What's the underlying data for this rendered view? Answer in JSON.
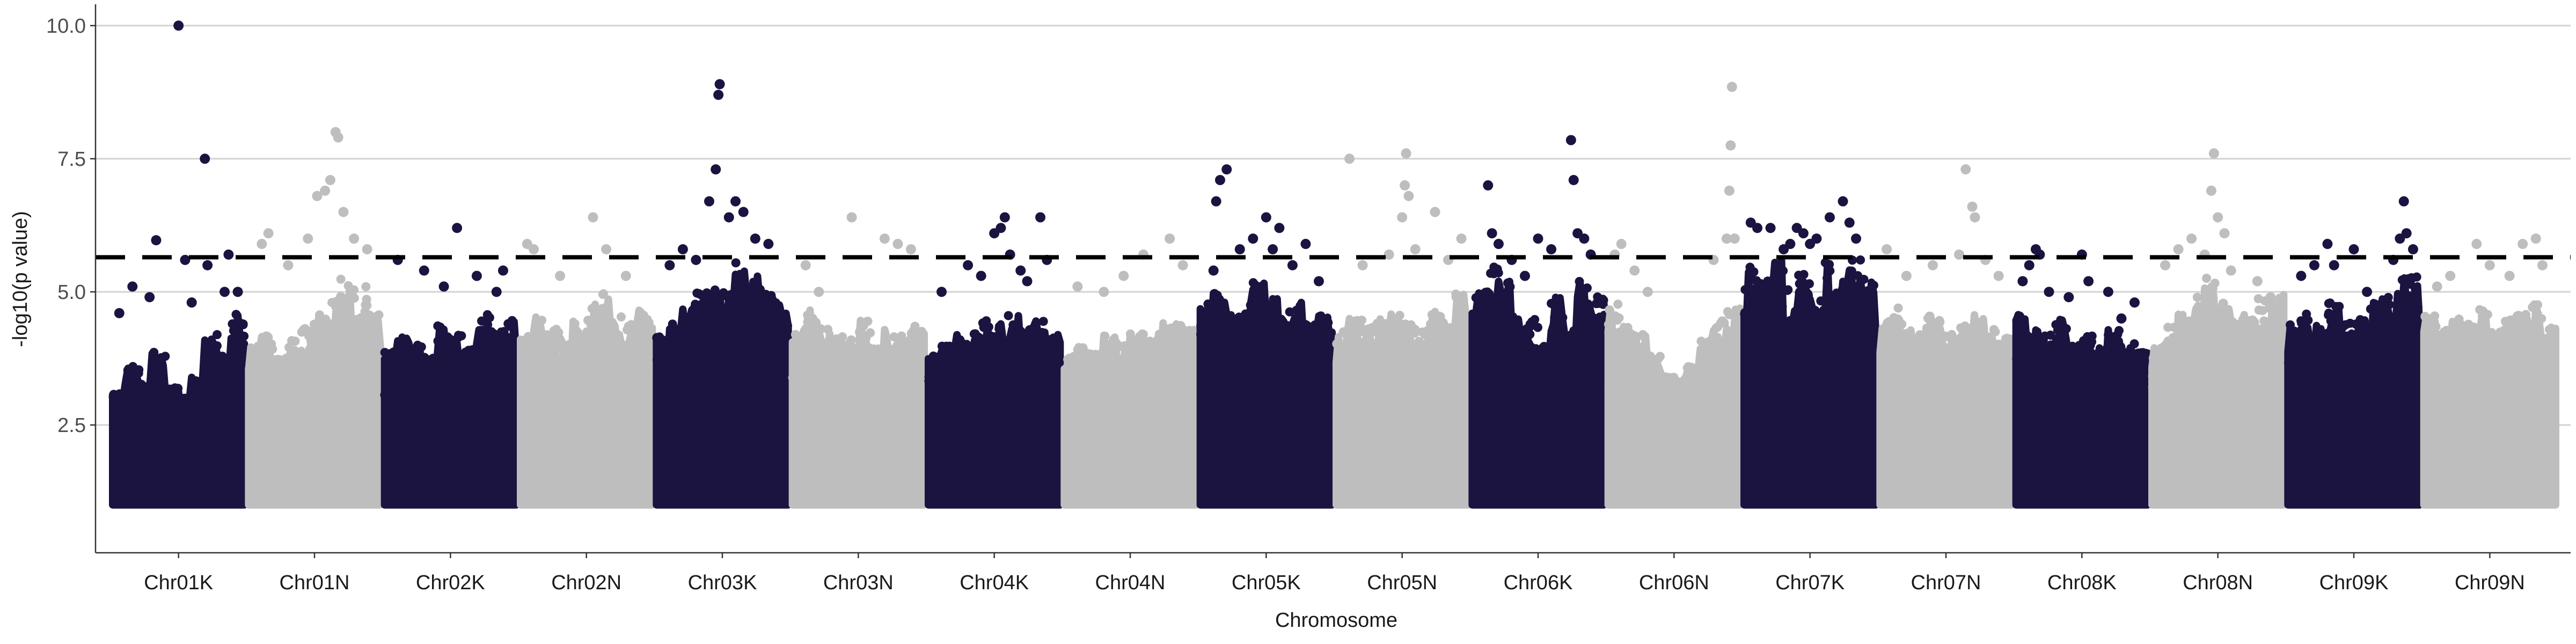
{
  "chart_data": {
    "type": "scatter",
    "subtype": "manhattan",
    "title": "",
    "xlabel": "Chromosome",
    "ylabel": "-log10(p value)",
    "ylim": [
      0.1,
      10.3
    ],
    "yticks": [
      2.5,
      5.0,
      7.5,
      10.0
    ],
    "ytick_labels": [
      "2.5",
      "5.0",
      "7.5",
      "10.0"
    ],
    "grid": "horizontal major lines only",
    "legend": "none",
    "threshold": {
      "value": 5.65,
      "style": "dashed",
      "color": "#000000"
    },
    "point_colors": [
      "#1b1340",
      "#bebebe"
    ],
    "point_floor": 1.0,
    "categories": [
      "Chr01K",
      "Chr01N",
      "Chr02K",
      "Chr02N",
      "Chr03K",
      "Chr03N",
      "Chr04K",
      "Chr04N",
      "Chr05K",
      "Chr05N",
      "Chr06K",
      "Chr06N",
      "Chr07K",
      "Chr07N",
      "Chr08K",
      "Chr08N",
      "Chr09K",
      "Chr09N"
    ],
    "series": [
      {
        "category": "Chr01K",
        "color": "#1b1340",
        "band_top": [
          3.1,
          3.6,
          3.3,
          3.9,
          3.2,
          3.0,
          3.4,
          4.2,
          3.8,
          4.6
        ],
        "peaks": [
          [
            0.05,
            4.6
          ],
          [
            0.15,
            5.1
          ],
          [
            0.28,
            4.9
          ],
          [
            0.33,
            5.97
          ],
          [
            0.5,
            10.0
          ],
          [
            0.55,
            5.6
          ],
          [
            0.6,
            4.8
          ],
          [
            0.7,
            7.5
          ],
          [
            0.72,
            5.5
          ],
          [
            0.85,
            5.0
          ],
          [
            0.88,
            5.7
          ],
          [
            0.95,
            5.0
          ]
        ]
      },
      {
        "category": "Chr01N",
        "color": "#bebebe",
        "band_top": [
          4.0,
          4.3,
          3.8,
          4.1,
          4.4,
          4.6,
          5.0,
          5.3,
          5.1,
          4.6
        ],
        "peaks": [
          [
            0.1,
            5.9
          ],
          [
            0.15,
            6.1
          ],
          [
            0.3,
            5.5
          ],
          [
            0.45,
            6.0
          ],
          [
            0.52,
            6.8
          ],
          [
            0.58,
            6.9
          ],
          [
            0.62,
            7.1
          ],
          [
            0.66,
            8.0
          ],
          [
            0.68,
            7.9
          ],
          [
            0.72,
            6.5
          ],
          [
            0.8,
            6.0
          ],
          [
            0.9,
            5.8
          ]
        ]
      },
      {
        "category": "Chr02K",
        "color": "#1b1340",
        "band_top": [
          3.9,
          4.2,
          4.0,
          3.8,
          4.4,
          4.2,
          4.0,
          4.6,
          4.3,
          4.5
        ],
        "peaks": [
          [
            0.1,
            5.6
          ],
          [
            0.3,
            5.4
          ],
          [
            0.45,
            5.1
          ],
          [
            0.55,
            6.2
          ],
          [
            0.7,
            5.3
          ],
          [
            0.85,
            5.0
          ],
          [
            0.9,
            5.4
          ]
        ]
      },
      {
        "category": "Chr02N",
        "color": "#bebebe",
        "band_top": [
          4.2,
          4.6,
          4.3,
          4.1,
          4.5,
          4.8,
          5.0,
          4.6,
          4.4,
          4.7
        ],
        "peaks": [
          [
            0.05,
            5.9
          ],
          [
            0.1,
            5.8
          ],
          [
            0.3,
            5.3
          ],
          [
            0.55,
            6.4
          ],
          [
            0.65,
            5.8
          ],
          [
            0.8,
            5.3
          ]
        ]
      },
      {
        "category": "Chr03K",
        "color": "#1b1340",
        "band_top": [
          4.2,
          4.5,
          4.8,
          5.0,
          5.2,
          5.0,
          5.6,
          5.3,
          5.0,
          4.8
        ],
        "peaks": [
          [
            0.1,
            5.5
          ],
          [
            0.2,
            5.8
          ],
          [
            0.3,
            5.6
          ],
          [
            0.4,
            6.7
          ],
          [
            0.45,
            7.3
          ],
          [
            0.47,
            8.7
          ],
          [
            0.48,
            8.9
          ],
          [
            0.55,
            6.4
          ],
          [
            0.6,
            6.7
          ],
          [
            0.66,
            6.5
          ],
          [
            0.75,
            6.0
          ],
          [
            0.85,
            5.9
          ]
        ]
      },
      {
        "category": "Chr03N",
        "color": "#bebebe",
        "band_top": [
          4.3,
          4.7,
          4.4,
          4.2,
          4.1,
          4.5,
          4.0,
          4.3,
          4.2,
          4.4
        ],
        "peaks": [
          [
            0.1,
            5.5
          ],
          [
            0.2,
            5.0
          ],
          [
            0.45,
            6.4
          ],
          [
            0.7,
            6.0
          ],
          [
            0.8,
            5.9
          ],
          [
            0.9,
            5.8
          ]
        ]
      },
      {
        "category": "Chr04K",
        "color": "#1b1340",
        "band_top": [
          3.8,
          4.0,
          4.2,
          4.3,
          4.5,
          4.4,
          4.6,
          4.3,
          4.5,
          4.2
        ],
        "peaks": [
          [
            0.1,
            5.0
          ],
          [
            0.3,
            5.5
          ],
          [
            0.4,
            5.3
          ],
          [
            0.5,
            6.1
          ],
          [
            0.55,
            6.2
          ],
          [
            0.58,
            6.4
          ],
          [
            0.62,
            5.7
          ],
          [
            0.7,
            5.4
          ],
          [
            0.75,
            5.2
          ],
          [
            0.85,
            6.4
          ],
          [
            0.9,
            5.6
          ]
        ]
      },
      {
        "category": "Chr04N",
        "color": "#bebebe",
        "band_top": [
          3.8,
          4.0,
          3.9,
          4.2,
          4.0,
          4.3,
          4.1,
          4.5,
          4.4,
          4.3
        ],
        "peaks": [
          [
            0.1,
            5.1
          ],
          [
            0.3,
            5.0
          ],
          [
            0.45,
            5.3
          ],
          [
            0.6,
            5.7
          ],
          [
            0.8,
            6.0
          ],
          [
            0.9,
            5.5
          ]
        ]
      },
      {
        "category": "Chr05K",
        "color": "#1b1340",
        "band_top": [
          4.8,
          5.0,
          4.6,
          4.8,
          5.2,
          4.9,
          4.7,
          4.8,
          4.5,
          4.7
        ],
        "peaks": [
          [
            0.1,
            5.4
          ],
          [
            0.12,
            6.7
          ],
          [
            0.15,
            7.1
          ],
          [
            0.2,
            7.3
          ],
          [
            0.3,
            5.8
          ],
          [
            0.4,
            6.0
          ],
          [
            0.5,
            6.4
          ],
          [
            0.55,
            5.8
          ],
          [
            0.6,
            6.2
          ],
          [
            0.7,
            5.5
          ],
          [
            0.8,
            5.9
          ],
          [
            0.9,
            5.2
          ]
        ]
      },
      {
        "category": "Chr05N",
        "color": "#bebebe",
        "band_top": [
          4.3,
          4.5,
          4.4,
          4.5,
          4.6,
          4.4,
          4.3,
          4.7,
          4.5,
          5.0
        ],
        "peaks": [
          [
            0.1,
            7.5
          ],
          [
            0.2,
            5.5
          ],
          [
            0.4,
            5.7
          ],
          [
            0.5,
            6.4
          ],
          [
            0.52,
            7.0
          ],
          [
            0.53,
            7.6
          ],
          [
            0.55,
            6.8
          ],
          [
            0.6,
            5.8
          ],
          [
            0.75,
            6.5
          ],
          [
            0.85,
            5.6
          ],
          [
            0.95,
            6.0
          ]
        ]
      },
      {
        "category": "Chr06K",
        "color": "#1b1340",
        "band_top": [
          5.0,
          5.5,
          5.2,
          4.6,
          4.5,
          4.0,
          4.9,
          4.3,
          5.2,
          5.0
        ],
        "peaks": [
          [
            0.12,
            7.0
          ],
          [
            0.15,
            6.1
          ],
          [
            0.2,
            5.9
          ],
          [
            0.3,
            5.6
          ],
          [
            0.4,
            5.3
          ],
          [
            0.5,
            6.0
          ],
          [
            0.6,
            5.8
          ],
          [
            0.75,
            7.85
          ],
          [
            0.77,
            7.1
          ],
          [
            0.8,
            6.1
          ],
          [
            0.85,
            6.0
          ],
          [
            0.9,
            5.7
          ]
        ]
      },
      {
        "category": "Chr06N",
        "color": "#bebebe",
        "band_top": [
          4.8,
          4.4,
          4.2,
          3.9,
          3.5,
          3.4,
          3.6,
          4.2,
          4.5,
          4.8
        ],
        "peaks": [
          [
            0.05,
            5.7
          ],
          [
            0.1,
            5.9
          ],
          [
            0.2,
            5.4
          ],
          [
            0.3,
            5.0
          ],
          [
            0.8,
            5.6
          ],
          [
            0.9,
            6.0
          ],
          [
            0.92,
            6.9
          ],
          [
            0.93,
            7.75
          ],
          [
            0.94,
            8.85
          ],
          [
            0.96,
            6.0
          ]
        ]
      },
      {
        "category": "Chr07K",
        "color": "#1b1340",
        "band_top": [
          5.5,
          5.3,
          5.6,
          5.1,
          5.4,
          5.0,
          5.6,
          5.2,
          5.6,
          5.3
        ],
        "peaks": [
          [
            0.05,
            6.3
          ],
          [
            0.1,
            6.2
          ],
          [
            0.2,
            6.2
          ],
          [
            0.25,
            5.3
          ],
          [
            0.3,
            5.8
          ],
          [
            0.35,
            5.9
          ],
          [
            0.4,
            6.2
          ],
          [
            0.45,
            6.1
          ],
          [
            0.5,
            5.9
          ],
          [
            0.55,
            6.0
          ],
          [
            0.65,
            6.4
          ],
          [
            0.75,
            6.7
          ],
          [
            0.8,
            6.3
          ],
          [
            0.85,
            6.0
          ]
        ]
      },
      {
        "category": "Chr07N",
        "color": "#bebebe",
        "band_top": [
          4.5,
          4.7,
          4.3,
          4.6,
          4.5,
          4.2,
          4.4,
          4.6,
          4.3,
          4.2
        ],
        "peaks": [
          [
            0.05,
            5.8
          ],
          [
            0.2,
            5.3
          ],
          [
            0.4,
            5.5
          ],
          [
            0.6,
            5.7
          ],
          [
            0.65,
            7.3
          ],
          [
            0.7,
            6.6
          ],
          [
            0.72,
            6.4
          ],
          [
            0.8,
            5.6
          ],
          [
            0.9,
            5.3
          ]
        ]
      },
      {
        "category": "Chr08K",
        "color": "#1b1340",
        "band_top": [
          4.6,
          4.3,
          4.2,
          4.5,
          4.0,
          4.2,
          4.0,
          4.3,
          4.1,
          3.9
        ],
        "peaks": [
          [
            0.05,
            5.2
          ],
          [
            0.1,
            5.5
          ],
          [
            0.15,
            5.8
          ],
          [
            0.18,
            5.7
          ],
          [
            0.25,
            5.0
          ],
          [
            0.4,
            4.9
          ],
          [
            0.5,
            5.7
          ],
          [
            0.55,
            5.2
          ],
          [
            0.7,
            5.0
          ],
          [
            0.8,
            4.5
          ],
          [
            0.9,
            4.8
          ]
        ]
      },
      {
        "category": "Chr08N",
        "color": "#bebebe",
        "band_top": [
          4.0,
          4.4,
          4.6,
          4.9,
          5.3,
          4.8,
          4.5,
          4.6,
          4.9,
          5.0
        ],
        "peaks": [
          [
            0.1,
            5.5
          ],
          [
            0.2,
            5.8
          ],
          [
            0.3,
            6.0
          ],
          [
            0.4,
            5.7
          ],
          [
            0.45,
            6.9
          ],
          [
            0.47,
            7.6
          ],
          [
            0.5,
            6.4
          ],
          [
            0.55,
            6.1
          ],
          [
            0.6,
            5.4
          ],
          [
            0.8,
            5.2
          ],
          [
            0.9,
            4.9
          ]
        ]
      },
      {
        "category": "Chr09K",
        "color": "#1b1340",
        "band_top": [
          4.5,
          4.6,
          4.4,
          4.8,
          4.6,
          4.5,
          4.8,
          5.0,
          5.3,
          5.4
        ],
        "peaks": [
          [
            0.1,
            5.3
          ],
          [
            0.2,
            5.5
          ],
          [
            0.3,
            5.9
          ],
          [
            0.35,
            5.5
          ],
          [
            0.5,
            5.8
          ],
          [
            0.6,
            5.0
          ],
          [
            0.8,
            5.6
          ],
          [
            0.85,
            6.0
          ],
          [
            0.88,
            6.7
          ],
          [
            0.9,
            6.1
          ],
          [
            0.95,
            5.8
          ]
        ]
      },
      {
        "category": "Chr09N",
        "color": "#bebebe",
        "band_top": [
          4.6,
          4.3,
          4.5,
          4.4,
          4.7,
          4.3,
          4.5,
          4.6,
          4.8,
          4.5
        ],
        "peaks": [
          [
            0.1,
            5.1
          ],
          [
            0.2,
            5.3
          ],
          [
            0.4,
            5.9
          ],
          [
            0.5,
            5.5
          ],
          [
            0.65,
            5.3
          ],
          [
            0.75,
            5.9
          ],
          [
            0.85,
            6.0
          ],
          [
            0.9,
            5.5
          ]
        ]
      }
    ]
  }
}
